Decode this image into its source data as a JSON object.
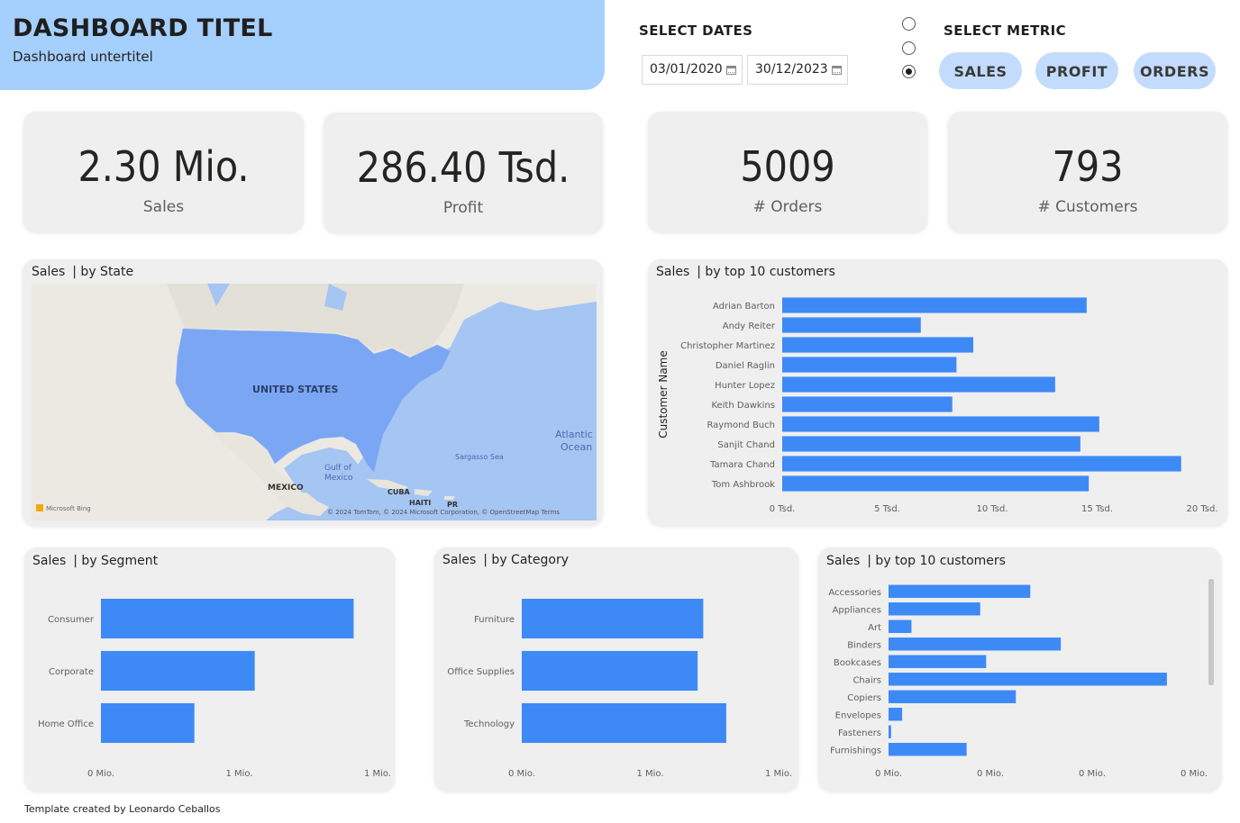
{
  "header": {
    "title": "DASHBOARD TITEL",
    "subtitle": "Dashboard untertitel"
  },
  "dates": {
    "label": "SELECT DATES",
    "start": "03/01/2020",
    "end": "30/12/2023"
  },
  "metric": {
    "label": "SELECT METRIC",
    "buttons": [
      "SALES",
      "PROFIT",
      "ORDERS"
    ],
    "radio_selected_index": 2
  },
  "kpis": [
    {
      "value": "2.30 Mio.",
      "label": "Sales"
    },
    {
      "value": "286.40 Tsd.",
      "label": "Profit"
    },
    {
      "value": "5009",
      "label": "# Orders"
    },
    {
      "value": "793",
      "label": "# Customers"
    }
  ],
  "map": {
    "title_main": "Sales",
    "title_sub": "| by State",
    "labels": [
      "UNITED STATES",
      "Atlantic",
      "Ocean",
      "Gulf of",
      "Mexico",
      "MEXICO",
      "CUBA",
      "HAITI",
      "PR",
      "Sargasso Sea"
    ],
    "attribution": "© 2024 TomTom, © 2024 Microsoft Corporation, © OpenStreetMap  Terms",
    "logo_text": "Microsoft Bing"
  },
  "colors": {
    "bar": "#3d8af7",
    "card": "#efefef",
    "header": "#a5cffd",
    "pill": "#c3dcfd"
  },
  "chart_data": [
    {
      "type": "bar",
      "orientation": "horizontal",
      "title_main": "Sales",
      "title_sub": "| by top 10 customers",
      "ylabel": "Customer Name",
      "categories": [
        "Adrian Barton",
        "Andy Reiter",
        "Christopher Martinez",
        "Daniel Raglin",
        "Hunter Lopez",
        "Keith Dawkins",
        "Raymond Buch",
        "Sanjit Chand",
        "Tamara Chand",
        "Tom Ashbrook"
      ],
      "values": [
        14500,
        6600,
        9100,
        8300,
        13000,
        8100,
        15100,
        14200,
        19000,
        14600
      ],
      "xlim": [
        0,
        20000
      ],
      "xticks": [
        "0 Tsd.",
        "5 Tsd.",
        "10 Tsd.",
        "15 Tsd.",
        "20 Tsd."
      ]
    },
    {
      "type": "bar",
      "orientation": "horizontal",
      "title_main": "Sales",
      "title_sub": "| by Segment",
      "categories": [
        "Consumer",
        "Corporate",
        "Home Office"
      ],
      "values": [
        1160000,
        706000,
        429000
      ],
      "xlim": [
        0,
        1270000
      ],
      "xticks": [
        "0 Mio.",
        "1 Mio.",
        "1 Mio."
      ]
    },
    {
      "type": "bar",
      "orientation": "horizontal",
      "title_main": "Sales",
      "title_sub": "| by Category",
      "categories": [
        "Furniture",
        "Office Supplies",
        "Technology"
      ],
      "values": [
        742000,
        719000,
        836000
      ],
      "xlim": [
        0,
        1050000
      ],
      "xticks": [
        "0 Mio.",
        "1 Mio.",
        "1 Mio."
      ]
    },
    {
      "type": "bar",
      "orientation": "horizontal",
      "title_main": "Sales",
      "title_sub": "| by top 10 customers",
      "categories": [
        "Accessories",
        "Appliances",
        "Art",
        "Binders",
        "Bookcases",
        "Chairs",
        "Copiers",
        "Envelopes",
        "Fasteners",
        "Furnishings"
      ],
      "values": [
        167000,
        108000,
        27000,
        203000,
        115000,
        328000,
        150000,
        16000,
        3000,
        92000
      ],
      "xlim": [
        0,
        360000
      ],
      "xticks": [
        "0 Mio.",
        "0 Mio.",
        "0 Mio.",
        "0 Mio."
      ]
    }
  ],
  "footer": "Template created by Leonardo Ceballos"
}
